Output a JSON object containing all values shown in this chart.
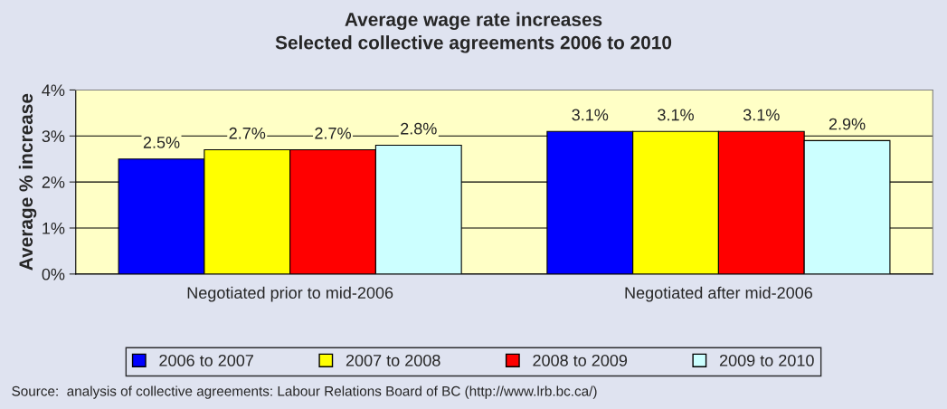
{
  "chart_data": {
    "type": "bar",
    "title": "Average wage rate increases\nSelected collective agreements 2006 to 2010",
    "ylabel": "Average % increase",
    "categories": [
      "Negotiated prior to mid-2006",
      "Negotiated after mid-2006"
    ],
    "series": [
      {
        "name": "2006 to 2007",
        "color": "#0000ff",
        "values": [
          2.5,
          3.1
        ],
        "value_labels": [
          "2.5%",
          "3.1%"
        ]
      },
      {
        "name": "2007 to 2008",
        "color": "#ffff00",
        "values": [
          2.7,
          3.1
        ],
        "value_labels": [
          "2.7%",
          "3.1%"
        ]
      },
      {
        "name": "2008 to 2009",
        "color": "#ff0000",
        "values": [
          2.7,
          3.1
        ],
        "value_labels": [
          "2.7%",
          "3.1%"
        ]
      },
      {
        "name": "2009 to 2010",
        "color": "#ccffff",
        "values": [
          2.8,
          2.9
        ],
        "value_labels": [
          "2.8%",
          "2.9%"
        ]
      }
    ],
    "ylim": [
      0,
      4
    ],
    "yticks": [
      {
        "value": 0,
        "label": "0%"
      },
      {
        "value": 1,
        "label": "1%"
      },
      {
        "value": 2,
        "label": "2%"
      },
      {
        "value": 3,
        "label": "3%"
      },
      {
        "value": 4,
        "label": "4%"
      }
    ],
    "grid": "y",
    "legend": "bottom",
    "annotations": [
      "Source:  analysis of collective agreements: Labour Relations Board of BC (http://www.lrb.bc.ca/)"
    ]
  }
}
